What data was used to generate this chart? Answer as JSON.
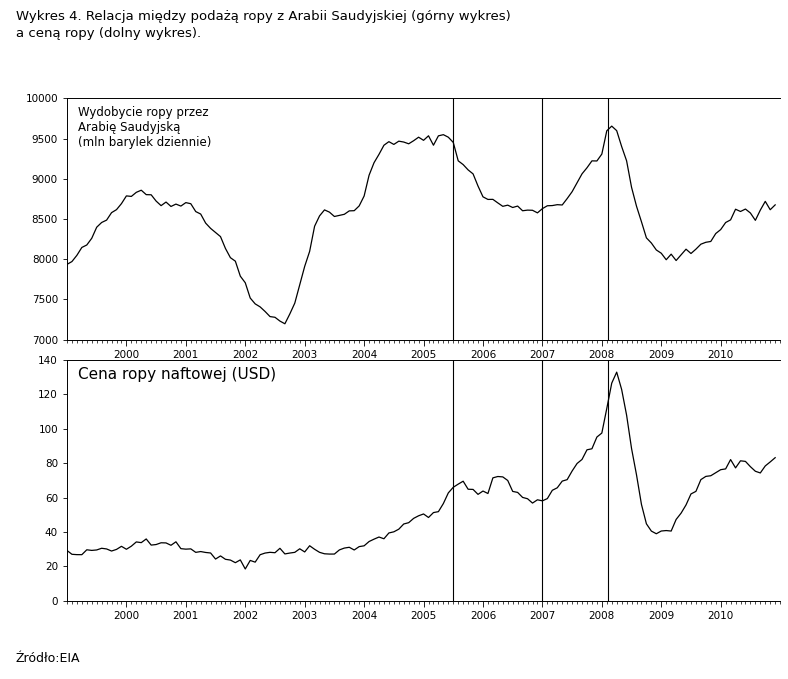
{
  "title": "Wykres 4. Relacja między podażą ropy z Arabii Saudyjskiej (górny wykres)\na ceną ropy (dolny wykres).",
  "source": "Źródło:EIA",
  "upper_label": "Wydobycie ropy przez\nArabię Saudyjską\n(mln barylek dziennie)",
  "lower_label": "Cena ropy naftowej (USD)",
  "upper_ylim": [
    7000,
    10000
  ],
  "upper_yticks": [
    7000,
    7500,
    8000,
    8500,
    9000,
    9500,
    10000
  ],
  "lower_ylim": [
    0,
    140
  ],
  "lower_yticks": [
    0,
    20,
    40,
    60,
    80,
    100,
    120,
    140
  ],
  "vlines": [
    2005.5,
    2007.0,
    2008.1
  ],
  "line_color": "#000000",
  "bg_color": "#ffffff",
  "font_family": "DejaVu Sans"
}
